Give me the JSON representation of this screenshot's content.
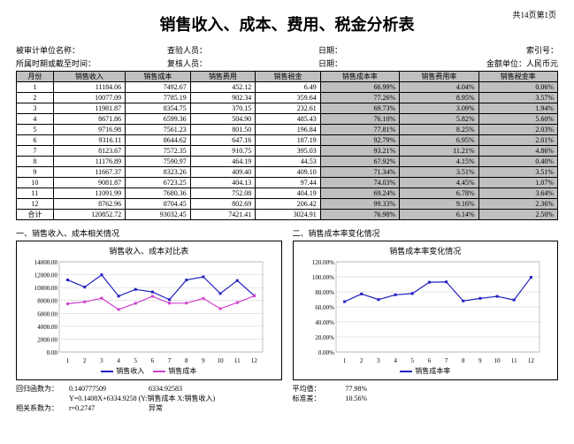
{
  "page_num": "共14页第1页",
  "title": "销售收入、成本、费用、税金分析表",
  "meta": {
    "r1c1": "被审计单位名称：",
    "r1c2": "查验人员：",
    "r1c3": "日期：",
    "r1c4": "索引号：",
    "r2c1": "所属时期或截至时间：",
    "r2c2": "复核人员：",
    "r2c3": "日期：",
    "r2c4": "金额单位：人民币元"
  },
  "table": {
    "headers": [
      "月份",
      "销售收入",
      "销售成本",
      "销售费用",
      "销售税金",
      "销售成本率",
      "销售费用率",
      "销售税金率"
    ],
    "rows": [
      [
        "1",
        "11184.06",
        "7492.67",
        "452.12",
        "6.49",
        "66.99%",
        "4.04%",
        "0.06%"
      ],
      [
        "2",
        "10077.09",
        "7785.19",
        "902.34",
        "359.64",
        "77.26%",
        "8.95%",
        "3.57%"
      ],
      [
        "3",
        "11981.87",
        "8354.75",
        "370.15",
        "232.61",
        "69.73%",
        "3.09%",
        "1.94%"
      ],
      [
        "4",
        "8671.86",
        "6599.36",
        "504.90",
        "485.43",
        "76.10%",
        "5.82%",
        "5.60%"
      ],
      [
        "5",
        "9716.98",
        "7561.23",
        "801.50",
        "196.84",
        "77.81%",
        "8.25%",
        "2.03%"
      ],
      [
        "6",
        "9316.11",
        "8644.62",
        "647.16",
        "187.19",
        "92.79%",
        "6.95%",
        "2.01%"
      ],
      [
        "7",
        "8123.67",
        "7572.35",
        "910.75",
        "395.03",
        "93.21%",
        "11.21%",
        "4.86%"
      ],
      [
        "8",
        "11176.89",
        "7590.97",
        "464.19",
        "44.53",
        "67.92%",
        "4.15%",
        "0.40%"
      ],
      [
        "9",
        "11667.37",
        "8323.26",
        "409.40",
        "409.10",
        "71.34%",
        "3.51%",
        "3.51%"
      ],
      [
        "10",
        "9081.87",
        "6723.25",
        "404.13",
        "97.44",
        "74.03%",
        "4.45%",
        "1.07%"
      ],
      [
        "11",
        "11091.99",
        "7680.36",
        "752.08",
        "404.19",
        "69.24%",
        "6.78%",
        "3.64%"
      ],
      [
        "12",
        "8762.96",
        "8704.45",
        "802.69",
        "206.42",
        "99.33%",
        "9.16%",
        "2.36%"
      ],
      [
        "合计",
        "120852.72",
        "93032.45",
        "7421.41",
        "3024.91",
        "76.98%",
        "6.14%",
        "2.50%"
      ]
    ]
  },
  "sec1": {
    "head": "一、销售收入、成本相关情况",
    "chart_title": "销售收入、成本对比表",
    "y_ticks": [
      "14000.00",
      "12000.00",
      "10000.00",
      "8000.00",
      "6000.00",
      "4000.00",
      "2000.00",
      "0.00"
    ],
    "x_ticks": [
      "1",
      "2",
      "3",
      "4",
      "5",
      "6",
      "7",
      "8",
      "9",
      "10",
      "11",
      "12"
    ],
    "series": [
      {
        "name": "销售收入",
        "color": "#2020c0",
        "values": [
          11184,
          10077,
          11982,
          8672,
          9717,
          9316,
          8124,
          11177,
          11667,
          9082,
          11092,
          8763
        ]
      },
      {
        "name": "销售成本",
        "color": "#d040d0",
        "values": [
          7493,
          7785,
          8355,
          6599,
          7561,
          8645,
          7572,
          7591,
          8323,
          6723,
          7680,
          8704
        ]
      }
    ],
    "ylim": [
      0,
      14000
    ],
    "stats": {
      "l1a": "回归函数为：",
      "l1b": "0.140777509",
      "l1c": "6334.92583",
      "l2": "Y=0.1408X+6334.9258  (Y:销售成本  X:销售收入)",
      "l3a": "相关系数为：",
      "l3b": "r=0.2747",
      "l3c": "异常"
    }
  },
  "sec2": {
    "head": "二、销售成本率变化情况",
    "chart_title": "销售成本率变化情况",
    "y_ticks": [
      "120.00%",
      "100.00%",
      "80.00%",
      "60.00%",
      "40.00%",
      "20.00%",
      "0.00%"
    ],
    "x_ticks": [
      "1",
      "2",
      "3",
      "4",
      "5",
      "6",
      "7",
      "8",
      "9",
      "10",
      "11",
      "12"
    ],
    "series": [
      {
        "name": "销售成本率",
        "color": "#2020c0",
        "values": [
          66.99,
          77.26,
          69.73,
          76.1,
          77.81,
          92.79,
          93.21,
          67.92,
          71.34,
          74.03,
          69.24,
          99.33
        ]
      }
    ],
    "ylim": [
      0,
      120
    ],
    "stats": {
      "l1a": "平均值：",
      "l1b": "77.98%",
      "l2a": "标准差：",
      "l2b": "10.56%"
    }
  }
}
